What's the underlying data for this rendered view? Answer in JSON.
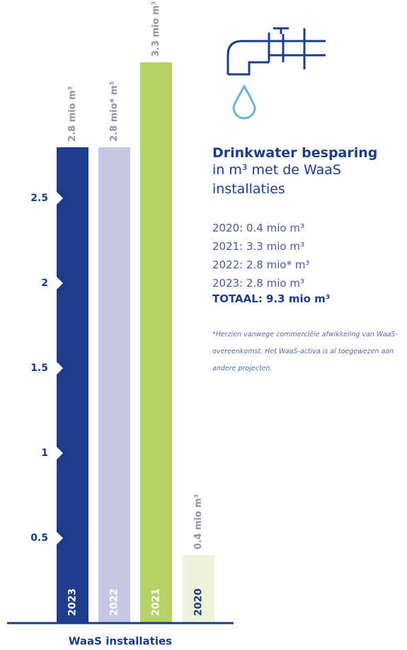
{
  "chart_data": {
    "type": "bar",
    "categories": [
      "2023",
      "2022",
      "2021",
      "2020"
    ],
    "values": [
      2.8,
      2.8,
      3.3,
      0.4
    ],
    "value_labels": [
      "2.8 mio m³",
      "2.8 mio* m³",
      "3.3 mio m³",
      "0.4 mio m³"
    ],
    "colors": [
      "#1d3c89",
      "#c6c8e6",
      "#b6d165",
      "#eef3dc"
    ],
    "label_colors": [
      "#ffffff",
      "#ffffff",
      "#ffffff",
      "#1d3c89"
    ],
    "ylim": [
      0,
      3.5
    ],
    "yticks": [
      0.5,
      1,
      1.5,
      2,
      2.5
    ],
    "xlabel": "WaaS installaties"
  },
  "panel": {
    "title": "Drinkwater besparing",
    "subtitle": "in m³ met de WaaS installaties",
    "lines": [
      "2020: 0.4 mio m³",
      "2021: 3.3 mio m³",
      "2022: 2.8 mio* m³",
      "2023: 2.8 mio m³"
    ],
    "total": "TOTAAL: 9.3 mio m³",
    "footnote": "*Herzien vanwege commerciële afwikkeling van WaaS-overeenkomst. Het WaaS-activa is al toegewezen aan andere projecten."
  }
}
